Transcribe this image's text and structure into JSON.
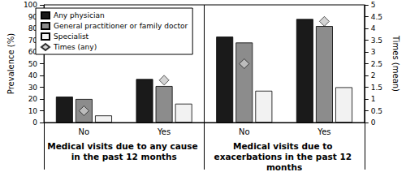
{
  "chart_data": {
    "type": "bar",
    "categories": [
      "No",
      "Yes",
      "No",
      "Yes"
    ],
    "category_groups": [
      "Medical visits due to any cause in the past 12 months",
      "Medical visits due to exacerbations in the past 12 months"
    ],
    "series": [
      {
        "name": "Any physician",
        "color": "#1a1a1a",
        "values": [
          22,
          37,
          73,
          88
        ]
      },
      {
        "name": "General practitioner or family doctor",
        "color": "#8c8c8c",
        "values": [
          20,
          31,
          68,
          82
        ]
      },
      {
        "name": "Specialist",
        "color": "#f2f2f2",
        "values": [
          6,
          16,
          27,
          30
        ]
      },
      {
        "name": "Times (any)",
        "type": "scatter",
        "marker": "diamond",
        "axis": "y2",
        "color": "#c8c8c8",
        "values": [
          0.5,
          1.8,
          2.5,
          4.3
        ]
      }
    ],
    "ylabel": "Prevalence (%)",
    "y2label": "Times (mean)",
    "ylim": [
      0,
      100
    ],
    "yticks": [
      0,
      10,
      20,
      30,
      40,
      50,
      60,
      70,
      80,
      90,
      100
    ],
    "y2lim": [
      0,
      5
    ],
    "y2ticks": [
      0,
      0.5,
      1,
      1.5,
      2,
      2.5,
      3,
      3.5,
      4,
      4.5,
      5
    ],
    "legend": "top-left",
    "grid": false
  }
}
